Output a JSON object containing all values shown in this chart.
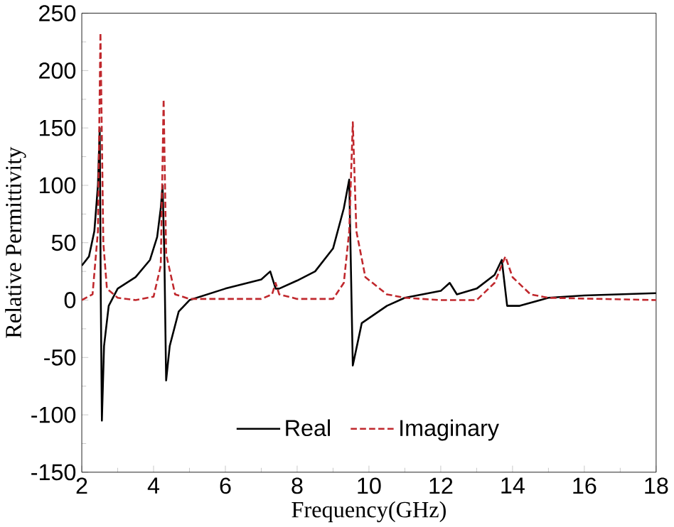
{
  "chart_data": {
    "type": "line",
    "xlabel": "Frequency(GHz)",
    "ylabel": "Relative Permittivity",
    "xlim": [
      2,
      18
    ],
    "ylim": [
      -150,
      250
    ],
    "xticks": [
      2,
      4,
      6,
      8,
      10,
      12,
      14,
      16,
      18
    ],
    "yticks": [
      -150,
      -100,
      -50,
      0,
      50,
      100,
      150,
      200,
      250
    ],
    "legend": "bottom",
    "grid": false,
    "series": [
      {
        "name": "Real",
        "color": "#000000",
        "line_style": "solid",
        "x": [
          2.0,
          2.2,
          2.35,
          2.45,
          2.5,
          2.53,
          2.56,
          2.62,
          2.75,
          3.0,
          3.5,
          3.9,
          4.1,
          4.2,
          4.25,
          4.3,
          4.35,
          4.45,
          4.7,
          5,
          6,
          7,
          7.25,
          7.4,
          7.5,
          8,
          8.5,
          9,
          9.3,
          9.45,
          9.55,
          9.8,
          10.5,
          11,
          12,
          12.25,
          12.45,
          13,
          13.5,
          13.7,
          13.85,
          14.2,
          15,
          16,
          18
        ],
        "values": [
          30,
          38,
          60,
          100,
          150,
          0,
          -105,
          -40,
          -5,
          10,
          20,
          35,
          55,
          80,
          100,
          40,
          -70,
          -40,
          -10,
          0,
          10,
          18,
          25,
          10,
          10,
          17,
          25,
          45,
          80,
          105,
          -57,
          -20,
          -5,
          2,
          8,
          15,
          5,
          10,
          22,
          35,
          -5,
          -5,
          2,
          4,
          6
        ]
      },
      {
        "name": "Imaginary",
        "color": "#c0282d",
        "line_style": "dashed",
        "x": [
          2,
          2.3,
          2.45,
          2.52,
          2.6,
          2.7,
          3,
          3.5,
          4,
          4.2,
          4.28,
          4.35,
          4.6,
          5,
          7,
          7.3,
          7.4,
          7.5,
          8,
          9,
          9.3,
          9.45,
          9.55,
          9.65,
          9.9,
          10.5,
          11,
          12,
          12.4,
          13,
          13.5,
          13.8,
          14,
          14.5,
          15,
          18
        ],
        "values": [
          0,
          5,
          60,
          233,
          50,
          10,
          2,
          0,
          3,
          30,
          175,
          40,
          5,
          1,
          1,
          5,
          15,
          5,
          1,
          1,
          15,
          60,
          155,
          60,
          20,
          5,
          2,
          0,
          0,
          0,
          15,
          38,
          20,
          5,
          2,
          0
        ]
      }
    ]
  }
}
